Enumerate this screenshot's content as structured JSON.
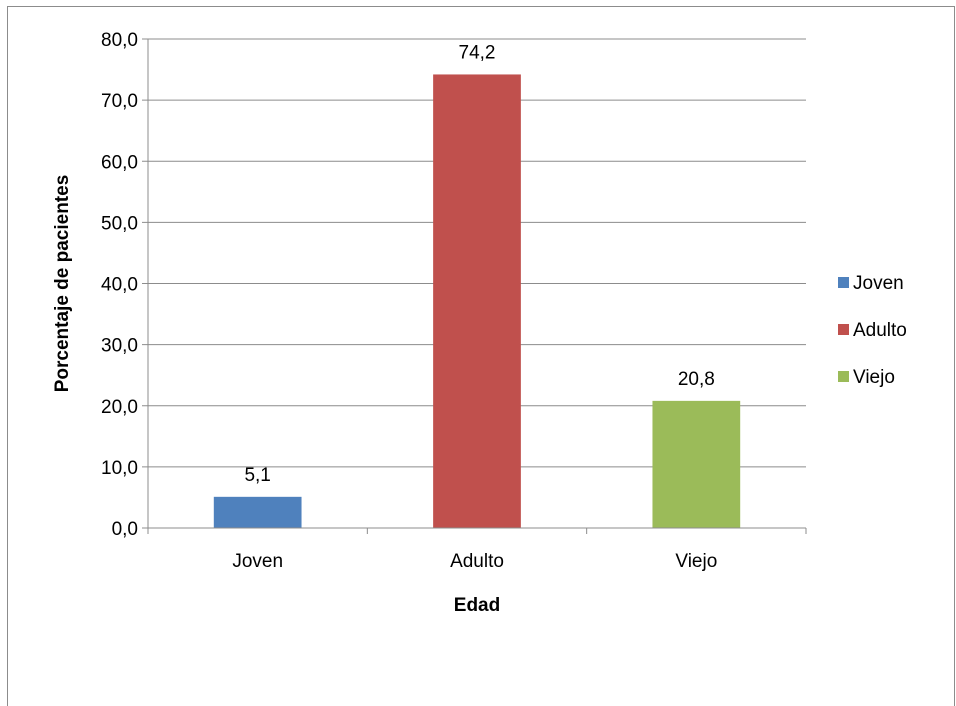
{
  "chart_data": {
    "type": "bar",
    "categories": [
      "Joven",
      "Adulto",
      "Viejo"
    ],
    "values": [
      5.1,
      74.2,
      20.8
    ],
    "value_labels": [
      "5,1",
      "74,2",
      "20,8"
    ],
    "colors": [
      "#4f81bd",
      "#c0504d",
      "#9bbb59"
    ],
    "xlabel": "Edad",
    "ylabel": "Porcentaje de pacientes",
    "ylim": [
      0,
      80
    ],
    "y_ticks": [
      0,
      10,
      20,
      30,
      40,
      50,
      60,
      70,
      80
    ],
    "y_tick_labels": [
      "0,0",
      "10,0",
      "20,0",
      "30,0",
      "40,0",
      "50,0",
      "60,0",
      "70,0",
      "80,0"
    ],
    "grid": true,
    "legend": {
      "position": "right",
      "entries": [
        "Joven",
        "Adulto",
        "Viejo"
      ]
    }
  }
}
